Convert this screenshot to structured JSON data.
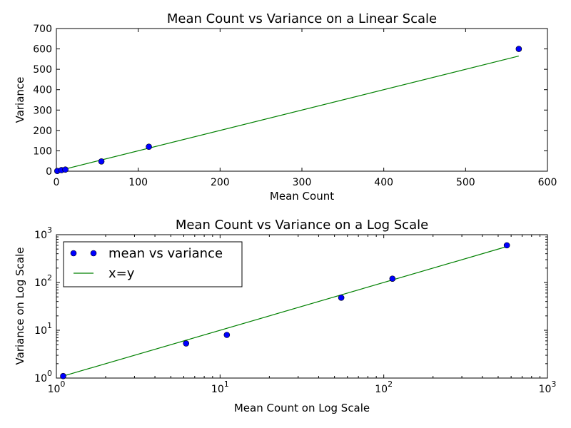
{
  "chart_data": [
    {
      "type": "scatter",
      "title": "Mean Count vs Variance on a Linear Scale",
      "xlabel": "Mean Count",
      "ylabel": "Variance",
      "xscale": "linear",
      "yscale": "linear",
      "xlim": [
        0,
        600
      ],
      "ylim": [
        0,
        700
      ],
      "xticks": [
        0,
        100,
        200,
        300,
        400,
        500,
        600
      ],
      "yticks": [
        0,
        100,
        200,
        300,
        400,
        500,
        600,
        700
      ],
      "xtick_labels": [
        "0",
        "100",
        "200",
        "300",
        "400",
        "500",
        "600"
      ],
      "ytick_labels": [
        "0",
        "100",
        "200",
        "300",
        "400",
        "500",
        "600",
        "700"
      ],
      "grid": false,
      "series": [
        {
          "name": "mean vs variance",
          "kind": "points",
          "color": "#0000ff",
          "x": [
            1.1,
            6.2,
            11,
            55,
            113,
            565
          ],
          "y": [
            1.1,
            5.3,
            8,
            48,
            120,
            600
          ]
        },
        {
          "name": "x=y",
          "kind": "line",
          "color": "#008000",
          "x": [
            1.1,
            565
          ],
          "y": [
            1.1,
            565
          ]
        }
      ]
    },
    {
      "type": "scatter",
      "title": "Mean Count vs Variance on a Log Scale",
      "xlabel": "Mean Count on Log Scale",
      "ylabel": "Variance on Log Scale",
      "xscale": "log",
      "yscale": "log",
      "xlim": [
        1,
        1000
      ],
      "ylim": [
        1,
        1000
      ],
      "xticks": [
        1,
        10,
        100,
        1000
      ],
      "yticks": [
        1,
        10,
        100,
        1000
      ],
      "xtick_labels": [
        {
          "base": "10",
          "exp": "0"
        },
        {
          "base": "10",
          "exp": "1"
        },
        {
          "base": "10",
          "exp": "2"
        },
        {
          "base": "10",
          "exp": "3"
        }
      ],
      "ytick_labels": [
        {
          "base": "10",
          "exp": "0"
        },
        {
          "base": "10",
          "exp": "1"
        },
        {
          "base": "10",
          "exp": "2"
        },
        {
          "base": "10",
          "exp": "3"
        }
      ],
      "grid": false,
      "legend": {
        "position": "upper-left",
        "entries": [
          "mean vs variance",
          "x=y"
        ]
      },
      "series": [
        {
          "name": "mean vs variance",
          "kind": "points",
          "color": "#0000ff",
          "x": [
            1.1,
            6.2,
            11,
            55,
            113,
            565
          ],
          "y": [
            1.1,
            5.3,
            8,
            48,
            120,
            600
          ]
        },
        {
          "name": "x=y",
          "kind": "line",
          "color": "#008000",
          "x": [
            1.1,
            565
          ],
          "y": [
            1.1,
            565
          ]
        }
      ]
    }
  ]
}
